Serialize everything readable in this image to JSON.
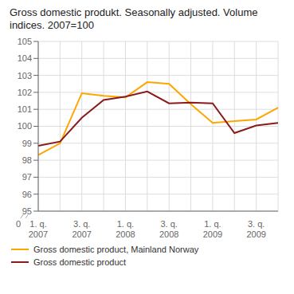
{
  "chart_data": {
    "type": "line",
    "title": "Gross domestic produkt. Seasonally adjusted. Volume\nindices. 2007=100",
    "categories": [
      "1. q.\n2007",
      null,
      "3. q.\n2007",
      null,
      "1. q.\n2008",
      null,
      "3. q.\n2008",
      null,
      "1. q.\n2009",
      null,
      "3. q.\n2009",
      null
    ],
    "series": [
      {
        "name": "Gross domestic product, Mainland Norway",
        "color": "#FFA500",
        "values": [
          98.3,
          99.0,
          101.95,
          101.8,
          101.7,
          102.6,
          102.5,
          101.3,
          100.2,
          100.3,
          100.4,
          101.1
        ]
      },
      {
        "name": "Gross domestic product",
        "color": "#8B1A1A",
        "values": [
          98.85,
          99.1,
          100.5,
          101.55,
          101.75,
          102.05,
          101.35,
          101.4,
          101.35,
          99.6,
          100.05,
          100.2
        ]
      }
    ],
    "ylim": [
      95,
      105
    ],
    "yticks": [
      95,
      96,
      97,
      98,
      99,
      100,
      101,
      102,
      103,
      104,
      105
    ],
    "grid": true,
    "legend": "lower left",
    "annotations": [
      "0"
    ]
  }
}
